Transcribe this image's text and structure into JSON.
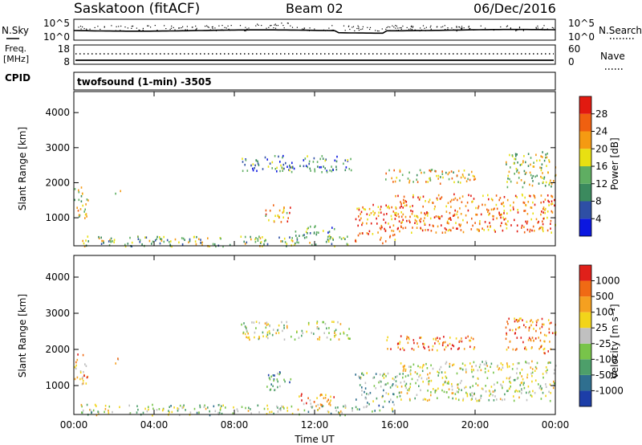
{
  "header": {
    "station": "Saskatoon (fitACF)",
    "beam": "Beam 02",
    "date": "06/Dec/2016"
  },
  "noise_panel": {
    "left_label": "N.Sky",
    "left_ticks": [
      "10^5",
      "10^0"
    ],
    "right_ticks": [
      "10^5",
      "10^0"
    ],
    "right_label": "N.Search"
  },
  "freq_panel": {
    "left_label_1": "Freq.",
    "left_label_2": "[MHz]",
    "left_ticks": [
      "18",
      "8"
    ],
    "right_ticks": [
      "60",
      "0"
    ],
    "right_label": "Nave",
    "cpid_label": "CPID"
  },
  "program_label": "twofsound (1-min) -3505",
  "colors": {
    "power_scale": [
      "#0b17e0",
      "#2e4fa5",
      "#3b8a5e",
      "#5fae62",
      "#e8e012",
      "#f59a12",
      "#f06010",
      "#e21a10"
    ],
    "velocity_scale": [
      "#1d3ea8",
      "#2f6f8f",
      "#4d9f6a",
      "#78c44a",
      "#c0c0c0",
      "#f2d41a",
      "#f5a020",
      "#f06a14",
      "#e0201a"
    ],
    "ground_scatter": "#c0c0c0"
  },
  "chart_data": [
    {
      "type": "heatmap",
      "name": "power",
      "ylabel": "Slant Range [km]",
      "yticks": [
        "1000",
        "2000",
        "3000",
        "4000"
      ],
      "ylim": [
        200,
        4600
      ],
      "xlim_hours": [
        0,
        24
      ],
      "colorbar_label": "Power [dB]",
      "colorbar_ticks": [
        "4",
        "8",
        "12",
        "16",
        "20",
        "24",
        "28"
      ],
      "regions": [
        {
          "t0": 0.0,
          "t1": 0.7,
          "r0": 1000,
          "r1": 1900,
          "level": 0.55
        },
        {
          "t0": 2.0,
          "t1": 2.3,
          "r0": 1550,
          "r1": 1800,
          "level": 0.45
        },
        {
          "t0": 0.3,
          "t1": 14.0,
          "r0": 200,
          "r1": 500,
          "level": 0.45
        },
        {
          "t0": 8.3,
          "t1": 13.8,
          "r0": 2300,
          "r1": 2800,
          "level": 0.3
        },
        {
          "t0": 9.5,
          "t1": 10.8,
          "r0": 900,
          "r1": 1400,
          "level": 0.7
        },
        {
          "t0": 11.0,
          "t1": 13.0,
          "r0": 400,
          "r1": 800,
          "level": 0.35
        },
        {
          "t0": 14.0,
          "t1": 16.0,
          "r0": 300,
          "r1": 1400,
          "level": 0.8
        },
        {
          "t0": 15.5,
          "t1": 20.0,
          "r0": 2000,
          "r1": 2400,
          "level": 0.6
        },
        {
          "t0": 16.0,
          "t1": 24.0,
          "r0": 600,
          "r1": 1700,
          "level": 0.75
        },
        {
          "t0": 21.5,
          "t1": 24.0,
          "r0": 1900,
          "r1": 2900,
          "level": 0.5
        }
      ]
    },
    {
      "type": "heatmap",
      "name": "velocity",
      "ylabel": "Slant Range [km]",
      "yticks": [
        "1000",
        "2000",
        "3000",
        "4000"
      ],
      "ylim": [
        200,
        4600
      ],
      "xlim_hours": [
        0,
        24
      ],
      "colorbar_label": "Velocity [m s⁻¹]",
      "colorbar_ticks": [
        "1000",
        "500",
        "100",
        "25",
        "-25",
        "-100",
        "-500",
        "-1000"
      ],
      "xlabel": "Time UT",
      "xticks": [
        "00:00",
        "04:00",
        "08:00",
        "12:00",
        "16:00",
        "20:00",
        "00:00"
      ],
      "regions": [
        {
          "t0": 0.0,
          "t1": 0.7,
          "r0": 1000,
          "r1": 1900,
          "level": 0.75
        },
        {
          "t0": 2.0,
          "t1": 2.3,
          "r0": 1550,
          "r1": 1800,
          "level": 0.75
        },
        {
          "t0": 0.3,
          "t1": 14.0,
          "r0": 200,
          "r1": 500,
          "level": 0.45
        },
        {
          "t0": 8.3,
          "t1": 13.8,
          "r0": 2300,
          "r1": 2800,
          "level": 0.5
        },
        {
          "t0": 9.5,
          "t1": 10.8,
          "r0": 900,
          "r1": 1400,
          "level": 0.3
        },
        {
          "t0": 11.0,
          "t1": 13.0,
          "r0": 400,
          "r1": 800,
          "level": 0.7
        },
        {
          "t0": 14.0,
          "t1": 16.0,
          "r0": 300,
          "r1": 1400,
          "level": 0.35
        },
        {
          "t0": 15.5,
          "t1": 20.0,
          "r0": 2000,
          "r1": 2400,
          "level": 0.8
        },
        {
          "t0": 16.0,
          "t1": 24.0,
          "r0": 600,
          "r1": 1700,
          "level": 0.5
        },
        {
          "t0": 21.5,
          "t1": 24.0,
          "r0": 1900,
          "r1": 2900,
          "level": 0.8
        }
      ]
    }
  ]
}
